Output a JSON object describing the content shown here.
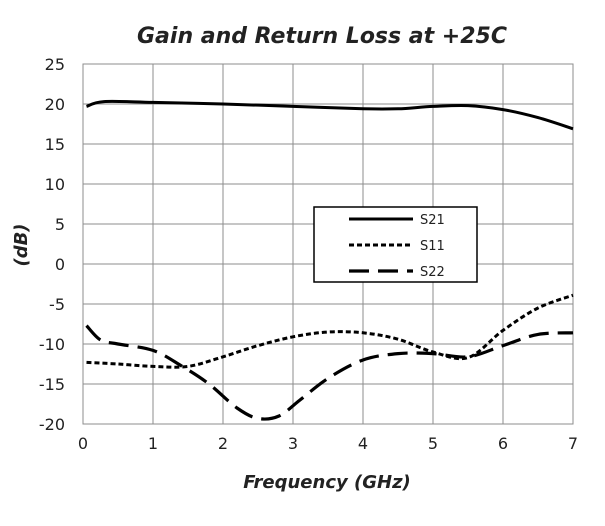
{
  "chart_data": {
    "type": "line",
    "title": "Gain and Return Loss at +25C",
    "xlabel": "Frequency (GHz)",
    "ylabel": "(dB)",
    "xlim": [
      0,
      7
    ],
    "ylim": [
      -20,
      25
    ],
    "xticks": [
      "0",
      "1",
      "2",
      "3",
      "4",
      "5",
      "6",
      "7"
    ],
    "yticks": [
      "25",
      "20",
      "15",
      "10",
      "5",
      "0",
      "-5",
      "-10",
      "-15",
      "-20"
    ],
    "grid": true,
    "legend_position": "center-right",
    "series": [
      {
        "name": "S21",
        "style": "solid",
        "color": "#000000",
        "x": [
          0.05,
          0.3,
          1,
          2,
          3,
          4,
          4.5,
          5,
          5.5,
          6,
          6.5,
          7
        ],
        "y": [
          19.7,
          20.3,
          20.2,
          20.0,
          19.7,
          19.4,
          19.4,
          19.7,
          19.8,
          19.3,
          18.3,
          16.9
        ]
      },
      {
        "name": "S11",
        "style": "dotted",
        "color": "#000000",
        "x": [
          0.05,
          0.5,
          1,
          1.5,
          2,
          2.5,
          3,
          3.5,
          4,
          4.5,
          5,
          5.5,
          6,
          6.5,
          7
        ],
        "y": [
          -12.3,
          -12.5,
          -12.8,
          -12.8,
          -11.6,
          -10.2,
          -9.1,
          -8.5,
          -8.6,
          -9.4,
          -11.0,
          -11.7,
          -8.3,
          -5.5,
          -3.9
        ]
      },
      {
        "name": "S22",
        "style": "dashed",
        "color": "#000000",
        "x": [
          0.05,
          0.25,
          0.5,
          1,
          1.4,
          1.8,
          2.2,
          2.5,
          2.8,
          3.1,
          3.5,
          4,
          4.5,
          5,
          5.5,
          6,
          6.5,
          7
        ],
        "y": [
          -7.7,
          -9.5,
          -10.0,
          -10.8,
          -12.7,
          -15.0,
          -18.0,
          -19.3,
          -19.0,
          -17.0,
          -14.3,
          -12.0,
          -11.2,
          -11.2,
          -11.6,
          -10.2,
          -8.8,
          -8.6
        ]
      }
    ]
  }
}
